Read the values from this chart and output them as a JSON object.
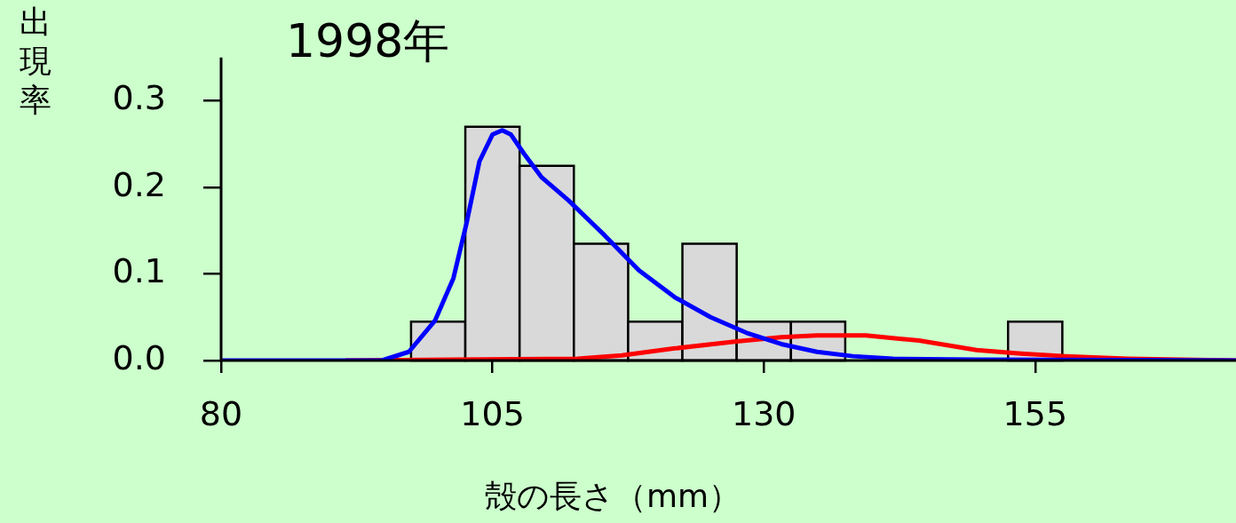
{
  "chart_data": {
    "type": "histogram",
    "xlabel": "殻の長さ（mm）",
    "ylabel": "出現率",
    "annotations": [
      "1998年"
    ],
    "bins": [
      97.5,
      102.5,
      107.5,
      112.5,
      117.5,
      122.5,
      127.5,
      132.5,
      137.5,
      142.5,
      147.5,
      152.5,
      157.5
    ],
    "values": [
      0.045,
      0.27,
      0.225,
      0.135,
      0.045,
      0.135,
      0.045,
      0.045,
      0,
      0,
      0,
      0.045
    ],
    "color": "#d9d9d9",
    "series": [
      {
        "type": "line",
        "color": "#0000ff",
        "x": [
          80,
          94.8,
          97.3,
          99.7,
          101.4,
          102.6,
          103.8,
          105,
          105.9,
          106.7,
          107.9,
          109.5,
          112,
          115.3,
          118.5,
          121.8,
          125.1,
          128.4,
          131.6,
          134.9,
          138.2,
          141.9,
          149.6,
          173.5
        ],
        "values": [
          0,
          0,
          0.01,
          0.046,
          0.095,
          0.158,
          0.23,
          0.261,
          0.266,
          0.261,
          0.239,
          0.212,
          0.185,
          0.145,
          0.104,
          0.073,
          0.05,
          0.032,
          0.019,
          0.01,
          0.005,
          0.002,
          0.001,
          0
        ]
      },
      {
        "type": "line",
        "color": "#ff0000",
        "x": [
          91.5,
          112.8,
          116.9,
          121.8,
          127.5,
          131.6,
          134.9,
          139.4,
          144.3,
          149.6,
          153.7,
          157.8,
          163.5,
          173.5
        ],
        "values": [
          0,
          0.002,
          0.006,
          0.014,
          0.022,
          0.027,
          0.029,
          0.029,
          0.023,
          0.012,
          0.008,
          0.005,
          0.002,
          0
        ]
      }
    ],
    "xlim": [
      80,
      173.5
    ],
    "xticks": [
      80,
      105,
      130,
      155
    ],
    "ylim": [
      0,
      0.35
    ],
    "yticks": [
      {
        "value": 0,
        "label": "0.0"
      },
      {
        "value": 0.1,
        "label": "0.1"
      },
      {
        "value": 0.2,
        "label": "0.2"
      },
      {
        "value": 0.3,
        "label": "0.3"
      }
    ],
    "grid": false,
    "legend": false,
    "line_style": "solid",
    "marker": "none"
  }
}
